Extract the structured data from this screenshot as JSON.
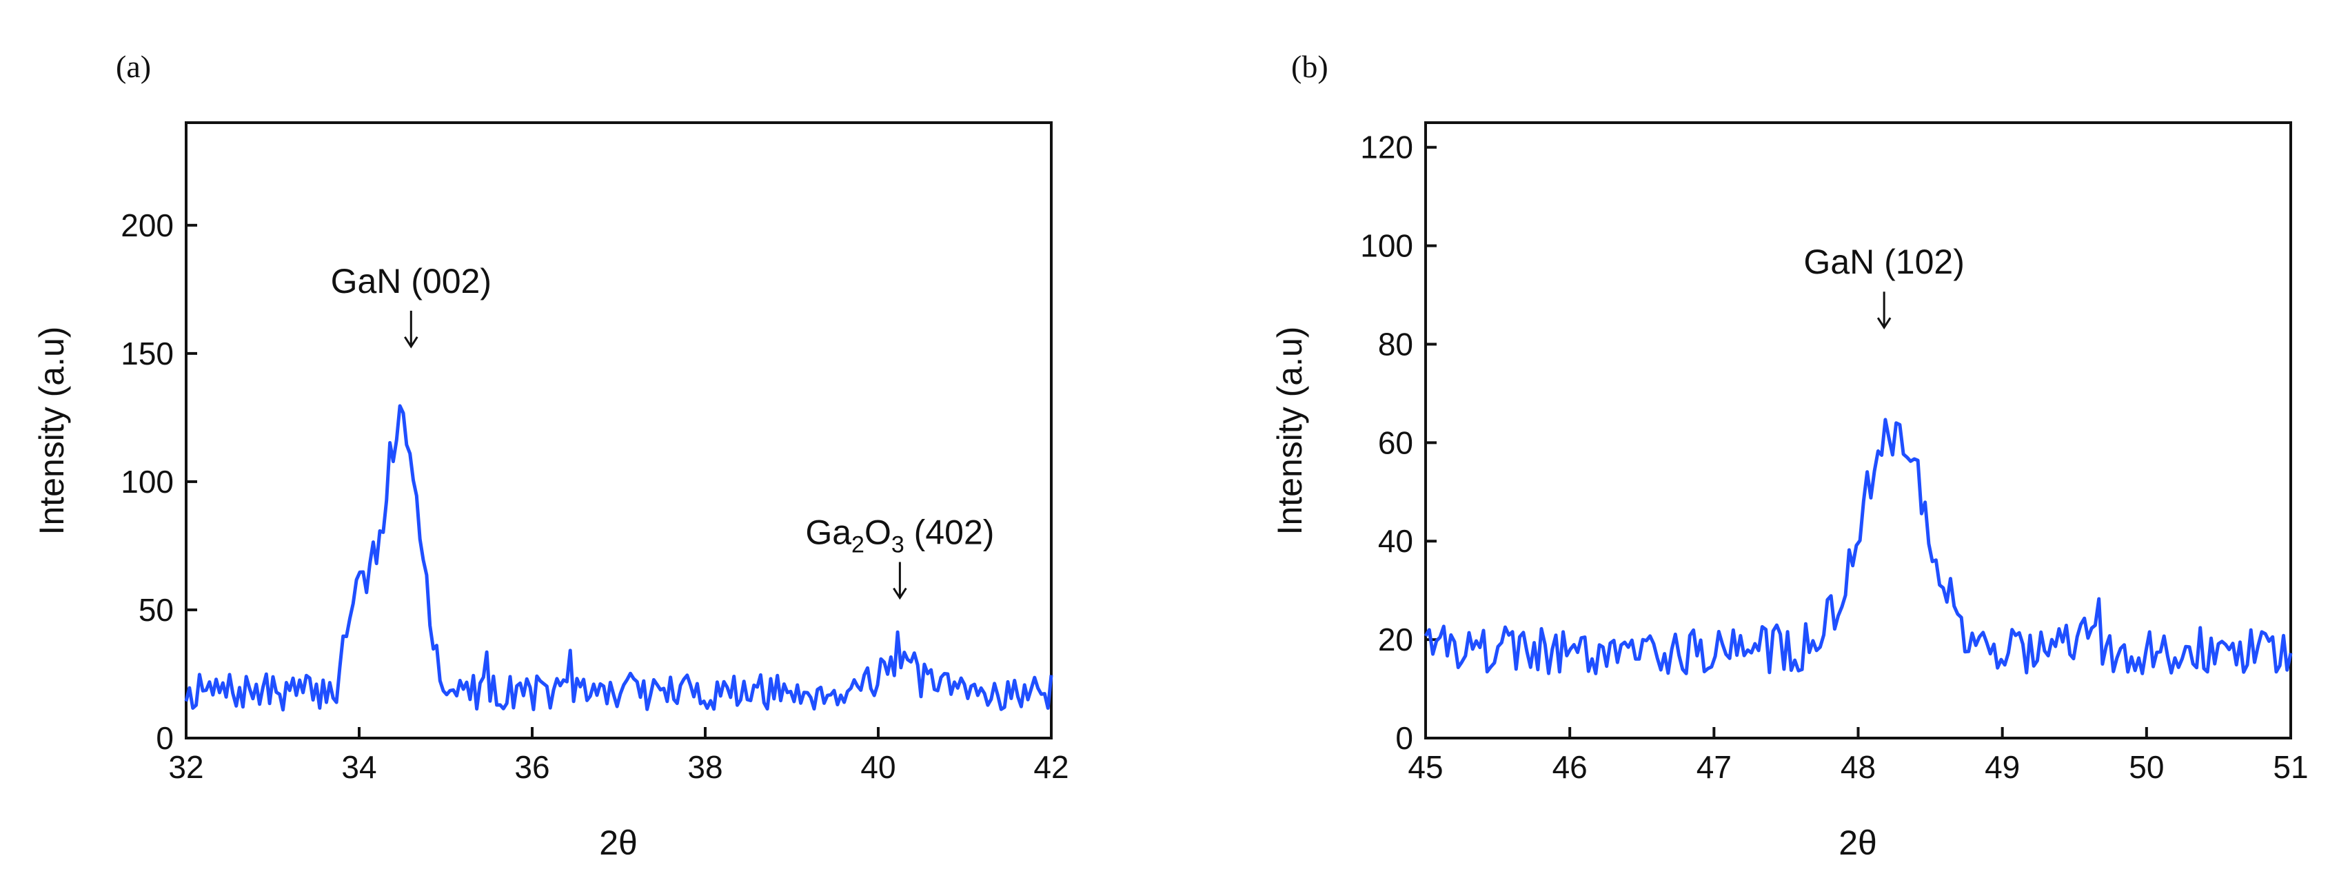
{
  "chart_data": [
    {
      "type": "line",
      "panel_label": "(a)",
      "xlabel": "2θ",
      "ylabel": "Intensity (a.u)",
      "xlim": [
        32,
        42
      ],
      "ylim": [
        0,
        240
      ],
      "xticks": [
        "32",
        "34",
        "36",
        "38",
        "40",
        "42"
      ],
      "yticks": [
        "0",
        "50",
        "100",
        "150",
        "200"
      ],
      "color": "#1f4fff",
      "series": [
        {
          "name": "XRD intensity",
          "x_start": 32,
          "x_end": 42,
          "points": 260,
          "baseline": 18,
          "noise": 7,
          "seed": 7,
          "peaks": [
            {
              "center": 34.5,
              "height": 108,
              "width": 0.28,
              "shoulder": 34.0,
              "shoulder_height": 38
            },
            {
              "center": 40.2,
              "height": 12,
              "width": 0.35
            }
          ]
        }
      ],
      "annotations": [
        {
          "main": "GaN (002)",
          "sub": [],
          "x": 34.6,
          "y": 150
        },
        {
          "main": "Ga",
          "sub": [
            "2",
            "O",
            "3",
            " (402)"
          ],
          "x": 40.25,
          "y": 52
        }
      ]
    },
    {
      "type": "line",
      "panel_label": "(b)",
      "xlabel": "2θ",
      "ylabel": "Intensity (a.u)",
      "xlim": [
        45,
        51
      ],
      "ylim": [
        0,
        125
      ],
      "xticks": [
        "45",
        "46",
        "47",
        "48",
        "49",
        "50",
        "51"
      ],
      "yticks": [
        "0",
        "20",
        "40",
        "60",
        "80",
        "100",
        "120"
      ],
      "color": "#1f4fff",
      "series": [
        {
          "name": "XRD intensity",
          "x_start": 45,
          "x_end": 51,
          "points": 240,
          "baseline": 18,
          "noise": 5,
          "seed": 19,
          "peaks": [
            {
              "center": 48.25,
              "height": 44,
              "width": 0.32
            }
          ]
        }
      ],
      "annotations": [
        {
          "main": "GaN (102)",
          "sub": [],
          "x": 48.18,
          "y": 82
        }
      ]
    }
  ]
}
